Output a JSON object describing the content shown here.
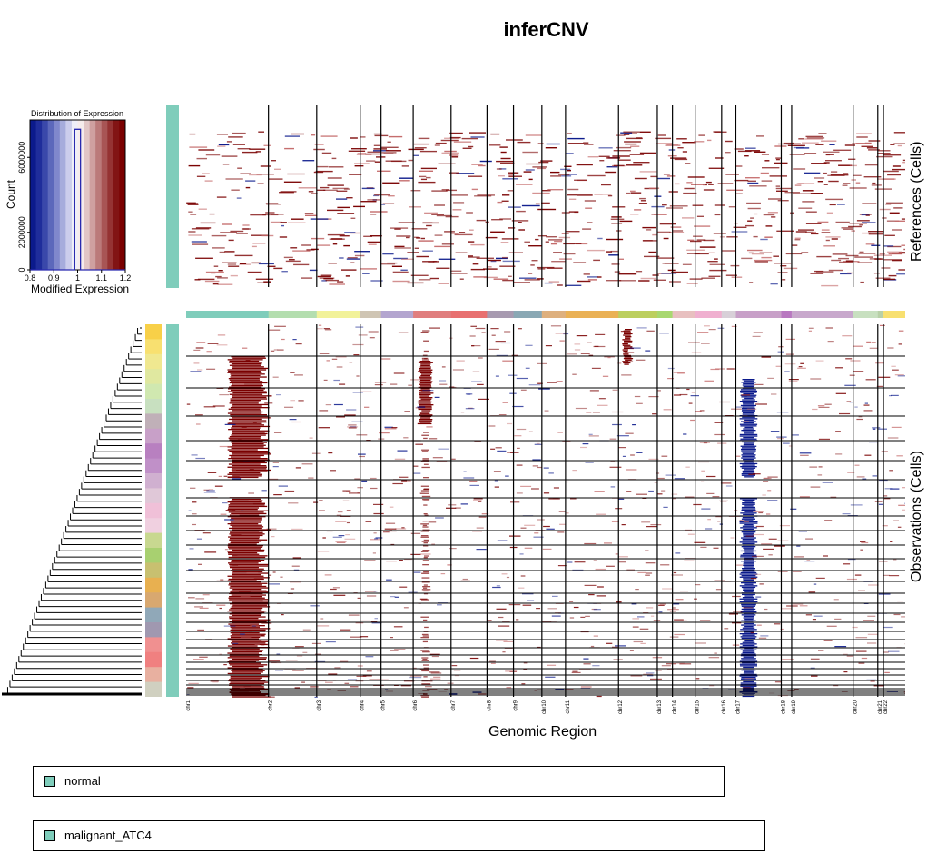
{
  "title": "inferCNV",
  "colors": {
    "low": "#0b1a8c",
    "mid": "#ffffff",
    "high": "#7a0000",
    "reference_group": "#7fcdbb"
  },
  "color_key": {
    "title": "Distribution of Expression",
    "xlabel": "Modified Expression",
    "ylabel": "Count",
    "x_ticks": [
      "0.8",
      "0.9",
      "1",
      "1.1",
      "1.2"
    ],
    "y_ticks": [
      "0",
      "2000000",
      "6000000"
    ]
  },
  "references_label": "References (Cells)",
  "observations_label": "Observations (Cells)",
  "genomic_region_label": "Genomic Region",
  "chromosomes": [
    "chr1",
    "chr2",
    "chr3",
    "chr4",
    "chr5",
    "chr6",
    "chr7",
    "chr8",
    "chr9",
    "chr10",
    "chr11",
    "chr12",
    "chr13",
    "chr14",
    "chr15",
    "chr16",
    "chr17",
    "chr18",
    "chr19",
    "chr20",
    "chr21",
    "chr22"
  ],
  "legend": [
    {
      "label": "normal",
      "color": "#7fcdbb"
    },
    {
      "label": "malignant_ATC4",
      "color": "#7fcdbb"
    }
  ],
  "chart_data": {
    "type": "heatmap",
    "title": "inferCNV",
    "xlabel": "Genomic Region",
    "x_categories": [
      "chr1",
      "chr2",
      "chr3",
      "chr4",
      "chr5",
      "chr6",
      "chr7",
      "chr8",
      "chr9",
      "chr10",
      "chr11",
      "chr12",
      "chr13",
      "chr14",
      "chr15",
      "chr16",
      "chr17",
      "chr18",
      "chr19",
      "chr20",
      "chr21",
      "chr22"
    ],
    "color_scale": {
      "min": 0.8,
      "center": 1.0,
      "max": 1.2
    },
    "panels": [
      {
        "name": "References (Cells)",
        "group": "normal"
      },
      {
        "name": "Observations (Cells)",
        "group": "malignant_ATC4"
      }
    ],
    "histogram": {
      "title": "Distribution of Expression",
      "xlabel": "Modified Expression",
      "ylabel": "Count",
      "xlim": [
        0.8,
        1.2
      ],
      "peak_value": 1.0,
      "peak_count": 7500000
    }
  }
}
